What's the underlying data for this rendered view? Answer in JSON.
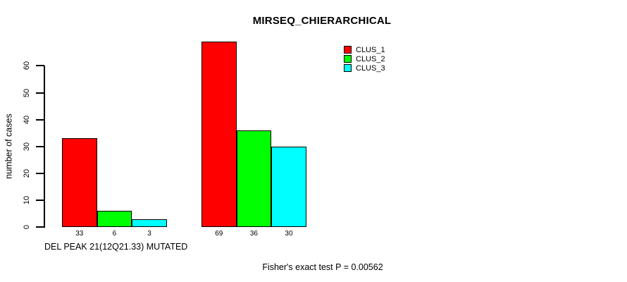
{
  "page": {
    "background": "#FFFFFF"
  },
  "chart_data": {
    "type": "bar",
    "title": "MIRSEQ_CHIERARCHICAL",
    "ylabel": "number of cases",
    "xlabel": "DEL PEAK 21(12Q21.33) MUTATED",
    "annotation": "Fisher's exact test P = 0.00562",
    "categories": [
      "",
      ""
    ],
    "series": [
      {
        "name": "CLUS_1",
        "color": "#FF0000",
        "values": [
          33,
          69
        ]
      },
      {
        "name": "CLUS_2",
        "color": "#00FF00",
        "values": [
          6,
          36
        ]
      },
      {
        "name": "CLUS_3",
        "color": "#00FFFF",
        "values": [
          3,
          30
        ]
      }
    ],
    "bar_value_labels": [
      [
        33,
        6,
        3
      ],
      [
        69,
        36,
        30
      ]
    ],
    "ylim": [
      0,
      60
    ],
    "yticks": [
      0,
      10,
      20,
      30,
      40,
      50,
      60
    ],
    "grid": false,
    "legend_position": "top-right",
    "axis_color": "#000000",
    "text_color": "#000000"
  }
}
